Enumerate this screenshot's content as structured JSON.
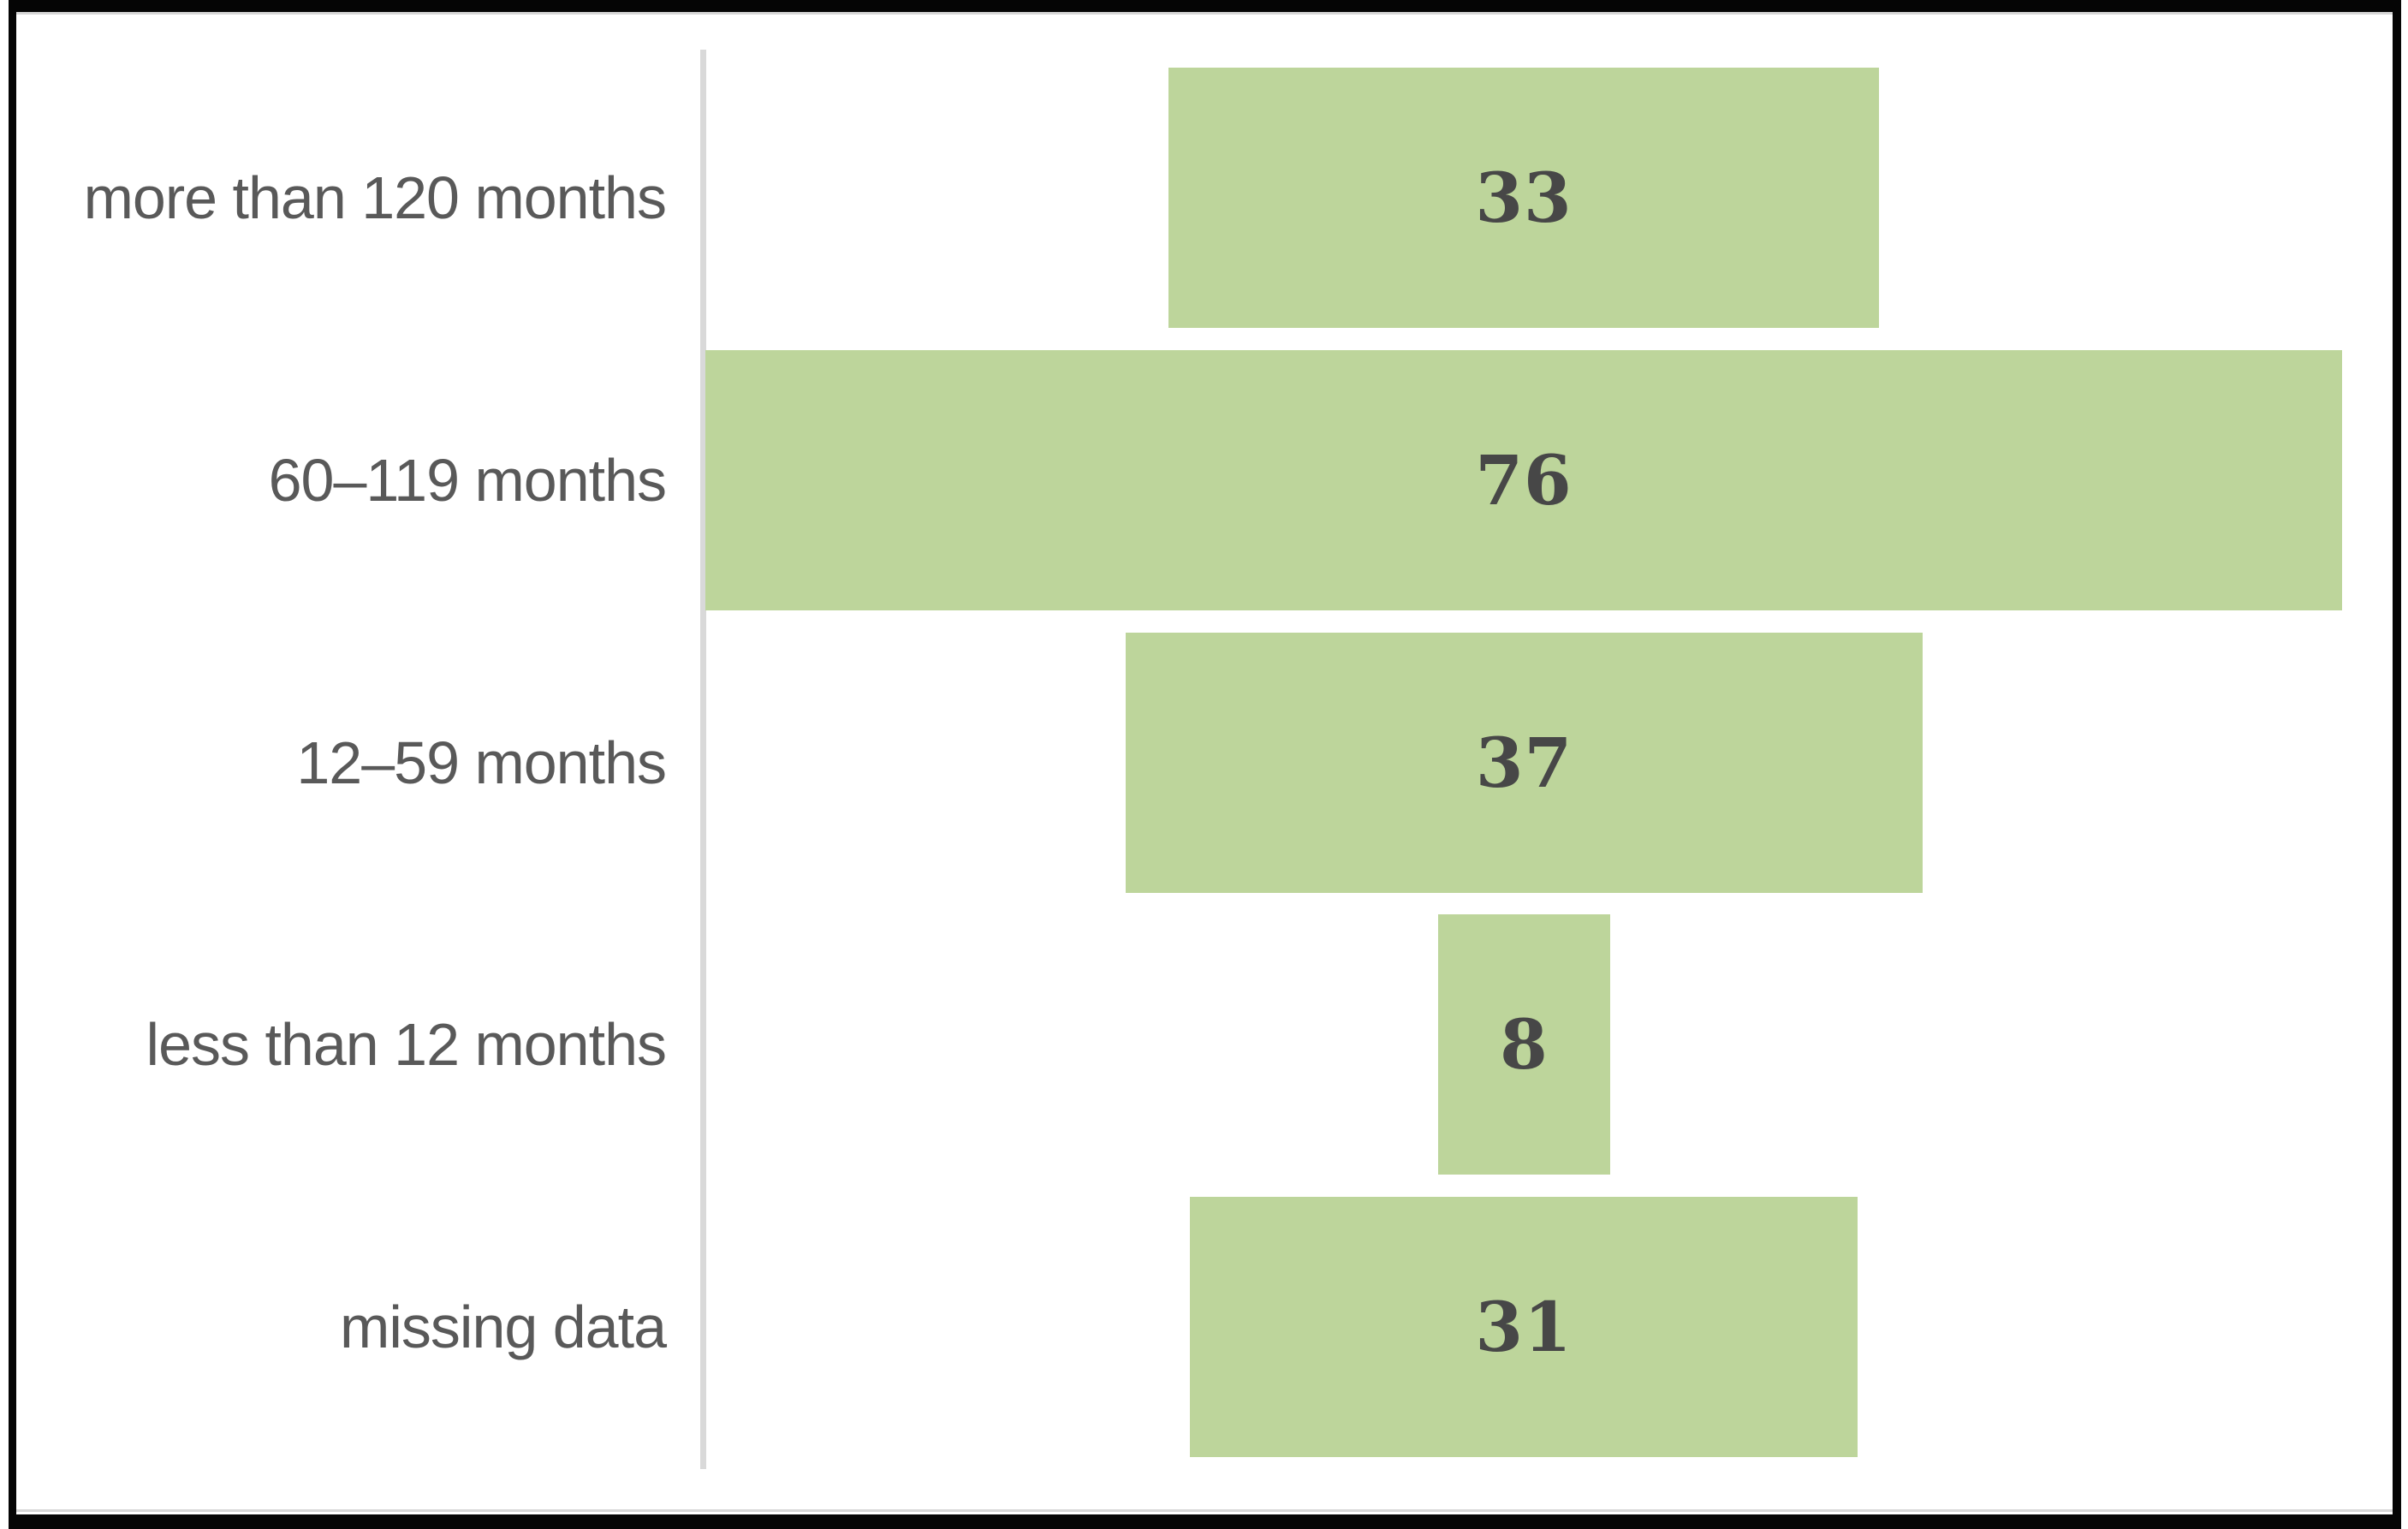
{
  "chart_data": {
    "type": "bar",
    "orientation": "horizontal",
    "layout": "centered-funnel",
    "title": "",
    "xlabel": "",
    "ylabel": "",
    "categories": [
      "more than 120 months",
      "60–119 months",
      "12–59 months",
      "less than 12 months",
      "missing data"
    ],
    "values": [
      33,
      76,
      37,
      8,
      31
    ],
    "value_labels_inside_bars": true,
    "grid": false,
    "legend": false,
    "x_axis_tick_labels": false,
    "colors": {
      "bar_fill": "#bdd59b",
      "value_text": "#474747",
      "category_text": "#595959",
      "axis_line": "#d9d9d9",
      "frame_border": "#050505",
      "background": "#ffffff"
    }
  }
}
